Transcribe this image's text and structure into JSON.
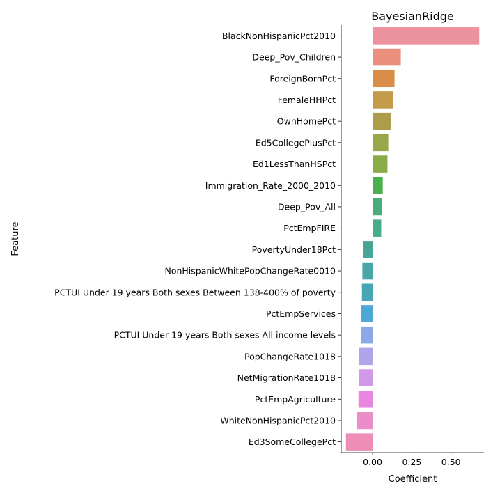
{
  "chart_data": {
    "type": "bar",
    "orientation": "horizontal",
    "title": "BayesianRidge",
    "xlabel": "Coefficient",
    "ylabel": "Feature",
    "xlim": [
      -0.2,
      0.71
    ],
    "xticks": [
      0.0,
      0.25,
      0.5
    ],
    "xtick_labels": [
      "0.00",
      "0.25",
      "0.50"
    ],
    "grid": false,
    "legend": "none",
    "categories": [
      "BlackNonHispanicPct2010",
      "Deep_Pov_Children",
      "ForeignBornPct",
      "FemaleHHPct",
      "OwnHomePct",
      "Ed5CollegePlusPct",
      "Ed1LessThanHSPct",
      "Immigration_Rate_2000_2010",
      "Deep_Pov_All",
      "PctEmpFIRE",
      "PovertyUnder18Pct",
      "NonHispanicWhitePopChangeRate0010",
      "PCTUI Under 19 years Both sexes Between 138-400% of poverty",
      "PctEmpServices",
      "PCTUI Under 19 years Both sexes All income levels",
      "PopChangeRate1018",
      "NetMigrationRate1018",
      "PctEmpAgriculture",
      "WhiteNonHispanicPct2010",
      "Ed3SomeCollegePct"
    ],
    "values": [
      0.68,
      0.18,
      0.14,
      0.13,
      0.115,
      0.1,
      0.095,
      0.065,
      0.06,
      0.055,
      -0.06,
      -0.065,
      -0.068,
      -0.075,
      -0.075,
      -0.085,
      -0.088,
      -0.09,
      -0.1,
      -0.17
    ],
    "colors": [
      "#ec919e",
      "#ea8f7e",
      "#d98d49",
      "#c49a4b",
      "#ad9c49",
      "#99a749",
      "#8aab48",
      "#4aaf4f",
      "#4aad79",
      "#46ac8b",
      "#47a595",
      "#48a6a8",
      "#48a6b2",
      "#4fa7d8",
      "#8ba8e8",
      "#b1a4e8",
      "#cf99e8",
      "#e887e0",
      "#e98ec9",
      "#ee8eb6"
    ]
  }
}
